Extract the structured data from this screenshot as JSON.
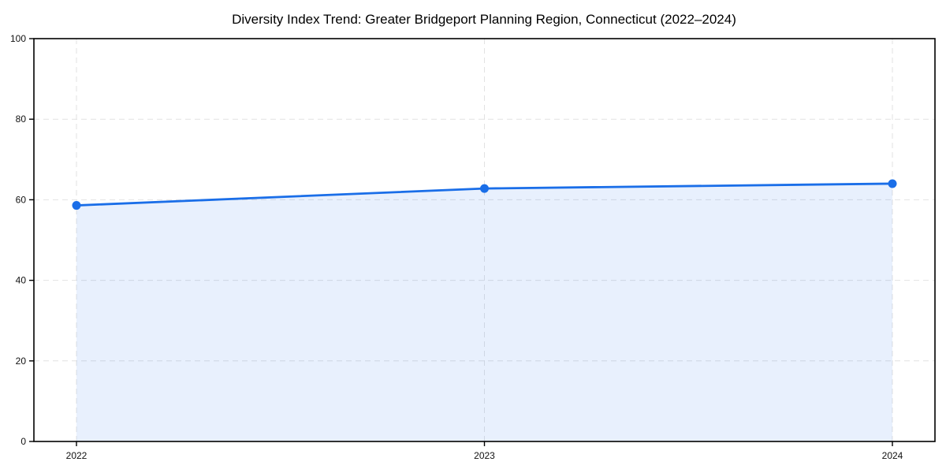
{
  "chart_data": {
    "type": "area",
    "title": "Diversity Index Trend: Greater Bridgeport Planning Region, Connecticut (2022–2024)",
    "categories": [
      "2022",
      "2023",
      "2024"
    ],
    "series": [
      {
        "name": "Diversity Index",
        "values": [
          58.6,
          62.8,
          64.0
        ]
      }
    ],
    "xlabel": "",
    "ylabel": "",
    "ylim": [
      0,
      100
    ],
    "y_ticks": [
      0,
      20,
      40,
      60,
      80,
      100
    ],
    "grid": "dashed",
    "legend_position": "none",
    "colors": {
      "line": "#1a6ee8",
      "marker": "#1a6ee8",
      "area_fill": "rgba(26,110,232,0.10)",
      "grid": "#e2e2e2",
      "spine": "#000000",
      "background": "#ffffff"
    }
  }
}
